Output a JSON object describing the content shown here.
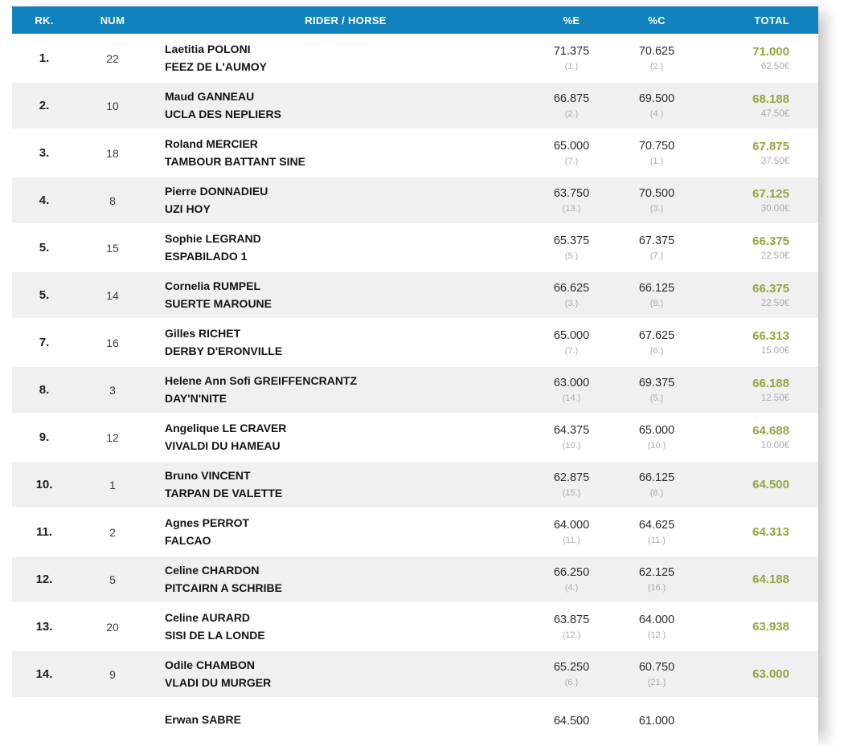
{
  "header": {
    "rk": "RK.",
    "num": "NUM",
    "rider_horse": "RIDER / HORSE",
    "pct_e": "%E",
    "pct_c": "%C",
    "total": "TOTAL"
  },
  "colors": {
    "header_bg": "#1182be",
    "header_text": "#ffffff",
    "row_alt_bg": "#f0f0f0",
    "total_green": "#8fa83e",
    "muted_gray": "#ababab"
  },
  "rows": [
    {
      "rank": "1.",
      "num": "22",
      "rider": "Laetitia POLONI",
      "horse": "FEEZ DE L'AUMOY",
      "pct_e": "71.375",
      "pct_e_rank": "(1.)",
      "pct_c": "70.625",
      "pct_c_rank": "(2.)",
      "total": "71.000",
      "prize": "62.50€"
    },
    {
      "rank": "2.",
      "num": "10",
      "rider": "Maud GANNEAU",
      "horse": "UCLA DES NEPLIERS",
      "pct_e": "66.875",
      "pct_e_rank": "(2.)",
      "pct_c": "69.500",
      "pct_c_rank": "(4.)",
      "total": "68.188",
      "prize": "47.50€"
    },
    {
      "rank": "3.",
      "num": "18",
      "rider": "Roland MERCIER",
      "horse": "TAMBOUR BATTANT SINE",
      "pct_e": "65.000",
      "pct_e_rank": "(7.)",
      "pct_c": "70.750",
      "pct_c_rank": "(1.)",
      "total": "67.875",
      "prize": "37.50€"
    },
    {
      "rank": "4.",
      "num": "8",
      "rider": "Pierre DONNADIEU",
      "horse": "UZI HOY",
      "pct_e": "63.750",
      "pct_e_rank": "(13.)",
      "pct_c": "70.500",
      "pct_c_rank": "(3.)",
      "total": "67.125",
      "prize": "30.00€"
    },
    {
      "rank": "5.",
      "num": "15",
      "rider": "Sophie LEGRAND",
      "horse": "ESPABILADO 1",
      "pct_e": "65.375",
      "pct_e_rank": "(5.)",
      "pct_c": "67.375",
      "pct_c_rank": "(7.)",
      "total": "66.375",
      "prize": "22.50€"
    },
    {
      "rank": "5.",
      "num": "14",
      "rider": "Cornelia RUMPEL",
      "horse": "SUERTE MAROUNE",
      "pct_e": "66.625",
      "pct_e_rank": "(3.)",
      "pct_c": "66.125",
      "pct_c_rank": "(8.)",
      "total": "66.375",
      "prize": "22.50€"
    },
    {
      "rank": "7.",
      "num": "16",
      "rider": "Gilles RICHET",
      "horse": "DERBY D'ERONVILLE",
      "pct_e": "65.000",
      "pct_e_rank": "(7.)",
      "pct_c": "67.625",
      "pct_c_rank": "(6.)",
      "total": "66.313",
      "prize": "15.00€"
    },
    {
      "rank": "8.",
      "num": "3",
      "rider": "Helene Ann Sofi GREIFFENCRANTZ",
      "horse": "DAY'N'NITE",
      "pct_e": "63.000",
      "pct_e_rank": "(14.)",
      "pct_c": "69.375",
      "pct_c_rank": "(5.)",
      "total": "66.188",
      "prize": "12.50€"
    },
    {
      "rank": "9.",
      "num": "12",
      "rider": "Angelique LE CRAVER",
      "horse": "VIVALDI DU HAMEAU",
      "pct_e": "64.375",
      "pct_e_rank": "(10.)",
      "pct_c": "65.000",
      "pct_c_rank": "(10.)",
      "total": "64.688",
      "prize": "10.00€"
    },
    {
      "rank": "10.",
      "num": "1",
      "rider": "Bruno VINCENT",
      "horse": "TARPAN DE VALETTE",
      "pct_e": "62.875",
      "pct_e_rank": "(15.)",
      "pct_c": "66.125",
      "pct_c_rank": "(8.)",
      "total": "64.500",
      "prize": ""
    },
    {
      "rank": "11.",
      "num": "2",
      "rider": "Agnes PERROT",
      "horse": "FALCAO",
      "pct_e": "64.000",
      "pct_e_rank": "(11.)",
      "pct_c": "64.625",
      "pct_c_rank": "(11.)",
      "total": "64.313",
      "prize": ""
    },
    {
      "rank": "12.",
      "num": "5",
      "rider": "Celine CHARDON",
      "horse": "PITCAIRN A SCHRIBE",
      "pct_e": "66.250",
      "pct_e_rank": "(4.)",
      "pct_c": "62.125",
      "pct_c_rank": "(16.)",
      "total": "64.188",
      "prize": ""
    },
    {
      "rank": "13.",
      "num": "20",
      "rider": "Celine AURARD",
      "horse": "SISI DE LA LONDE",
      "pct_e": "63.875",
      "pct_e_rank": "(12.)",
      "pct_c": "64.000",
      "pct_c_rank": "(12.)",
      "total": "63.938",
      "prize": ""
    },
    {
      "rank": "14.",
      "num": "9",
      "rider": "Odile CHAMBON",
      "horse": "VLADI DU MURGER",
      "pct_e": "65.250",
      "pct_e_rank": "(6.)",
      "pct_c": "60.750",
      "pct_c_rank": "(21.)",
      "total": "63.000",
      "prize": ""
    },
    {
      "rank": "",
      "num": "",
      "rider": "Erwan SABRE",
      "horse": "",
      "pct_e": "64.500",
      "pct_e_rank": "",
      "pct_c": "61.000",
      "pct_c_rank": "",
      "total": "",
      "prize": ""
    }
  ]
}
